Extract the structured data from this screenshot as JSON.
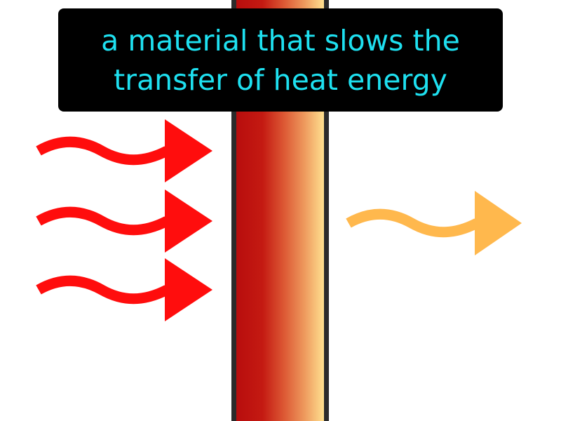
{
  "definition": {
    "lines": [
      "a material that slows the",
      "transfer of heat energy"
    ]
  },
  "colors": {
    "background": "#ffffff",
    "caption_background": "#000000",
    "caption_text": "#1ee0f0",
    "hot_heat_arrow": "#ff0d0d",
    "reduced_heat_arrow": "#ffb84d",
    "wall_outline": "#2b2b2b",
    "wall_gradient": [
      "#b80d0d",
      "#d9452a",
      "#e88a55",
      "#ffd98c"
    ]
  },
  "diagram": {
    "incoming_heat_arrow_count": 3,
    "outgoing_heat_arrow_count": 1,
    "incoming_icon": "wavy-arrow-right-icon",
    "outgoing_icon": "wavy-arrow-right-icon",
    "barrier_icon": "insulator-wall"
  }
}
